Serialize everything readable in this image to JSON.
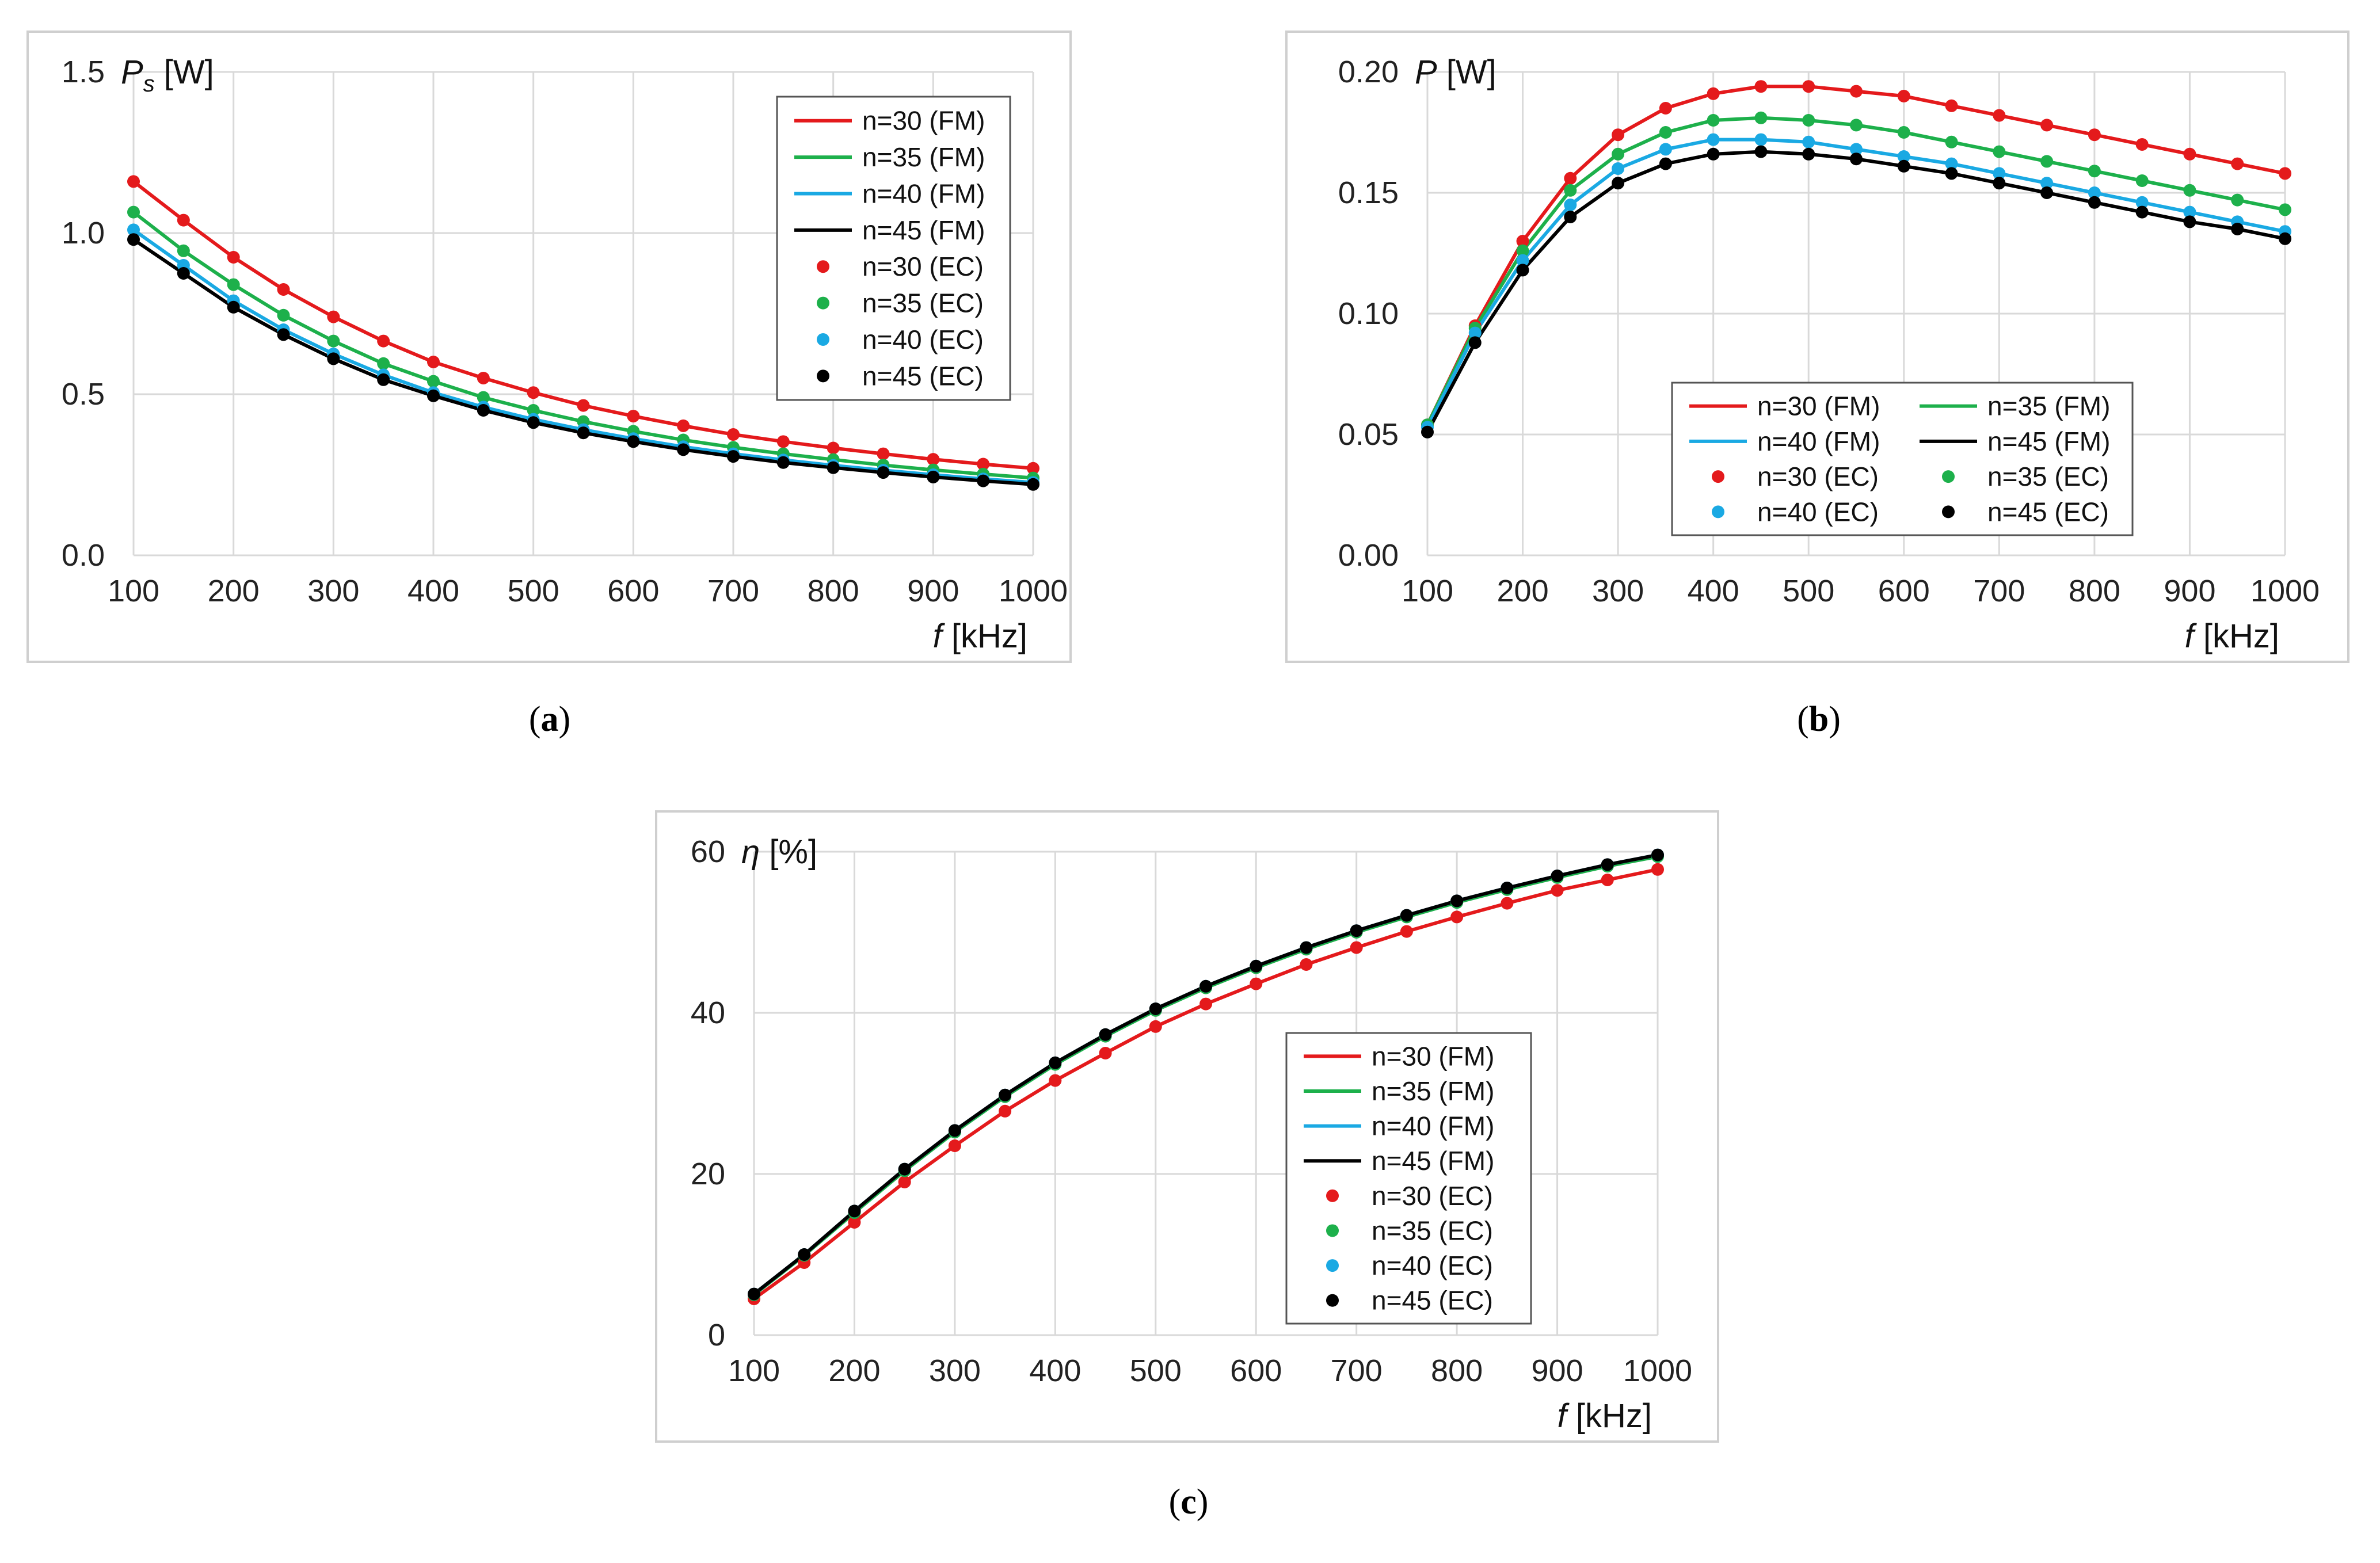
{
  "figure": {
    "panels": [
      "a",
      "b",
      "c"
    ]
  },
  "chart_data": [
    {
      "id": "a",
      "type": "line",
      "caption": "(a)",
      "ylabel_sym": "P",
      "ylabel_sub": "s",
      "ylabel_unit": " [W]",
      "xlabel_sym": "f",
      "xlabel_unit": " [kHz]",
      "xlim": [
        100,
        1000
      ],
      "ylim": [
        0,
        1.5
      ],
      "xticks": [
        100,
        200,
        300,
        400,
        500,
        600,
        700,
        800,
        900,
        1000
      ],
      "yticks": [
        0,
        0.5,
        1.0,
        1.5
      ],
      "ytick_labels": [
        "0.0",
        "0.5",
        "1.0",
        "1.5"
      ],
      "grid": true,
      "legend_columns": 1,
      "legend_position": "top-right",
      "x": [
        100,
        150,
        200,
        250,
        300,
        350,
        400,
        450,
        500,
        550,
        600,
        650,
        700,
        750,
        800,
        850,
        900,
        950,
        1000
      ],
      "series": [
        {
          "name": "n=30",
          "color": "#e41a1c",
          "values": [
            1.16,
            1.04,
            0.925,
            0.825,
            0.74,
            0.665,
            0.6,
            0.55,
            0.505,
            0.465,
            0.432,
            0.402,
            0.375,
            0.353,
            0.333,
            0.315,
            0.298,
            0.283,
            0.27
          ]
        },
        {
          "name": "n=35",
          "color": "#1db04b",
          "values": [
            1.065,
            0.945,
            0.84,
            0.745,
            0.665,
            0.595,
            0.54,
            0.49,
            0.45,
            0.415,
            0.385,
            0.358,
            0.335,
            0.315,
            0.297,
            0.28,
            0.265,
            0.252,
            0.24
          ]
        },
        {
          "name": "n=40",
          "color": "#1aa9e3",
          "values": [
            1.01,
            0.9,
            0.79,
            0.7,
            0.625,
            0.56,
            0.505,
            0.46,
            0.422,
            0.39,
            0.362,
            0.337,
            0.315,
            0.296,
            0.279,
            0.264,
            0.25,
            0.237,
            0.226
          ]
        },
        {
          "name": "n=45",
          "color": "#000000",
          "values": [
            0.98,
            0.875,
            0.77,
            0.685,
            0.61,
            0.545,
            0.495,
            0.45,
            0.412,
            0.38,
            0.353,
            0.328,
            0.307,
            0.288,
            0.272,
            0.257,
            0.243,
            0.231,
            0.22
          ]
        }
      ],
      "legend": [
        "n=30 (FM)",
        "n=35 (FM)",
        "n=40 (FM)",
        "n=45 (FM)",
        "n=30 (EC)",
        "n=35 (EC)",
        "n=40 (EC)",
        "n=45 (EC)"
      ]
    },
    {
      "id": "b",
      "type": "line",
      "caption": "(b)",
      "ylabel_sym": "P",
      "ylabel_sub": "",
      "ylabel_unit": " [W]",
      "xlabel_sym": "f",
      "xlabel_unit": " [kHz]",
      "xlim": [
        100,
        1000
      ],
      "ylim": [
        0,
        0.2
      ],
      "xticks": [
        100,
        200,
        300,
        400,
        500,
        600,
        700,
        800,
        900,
        1000
      ],
      "yticks": [
        0,
        0.05,
        0.1,
        0.15,
        0.2
      ],
      "ytick_labels": [
        "0.00",
        "0.05",
        "0.10",
        "0.15",
        "0.20"
      ],
      "grid": true,
      "legend_columns": 2,
      "legend_position": "bottom-center",
      "x": [
        100,
        150,
        200,
        250,
        300,
        350,
        400,
        450,
        500,
        550,
        600,
        650,
        700,
        750,
        800,
        850,
        900,
        950,
        1000
      ],
      "series": [
        {
          "name": "n=30",
          "color": "#e41a1c",
          "values": [
            0.054,
            0.095,
            0.13,
            0.156,
            0.174,
            0.185,
            0.191,
            0.194,
            0.194,
            0.192,
            0.19,
            0.186,
            0.182,
            0.178,
            0.174,
            0.17,
            0.166,
            0.162,
            0.158
          ]
        },
        {
          "name": "n=35",
          "color": "#1db04b",
          "values": [
            0.054,
            0.094,
            0.126,
            0.151,
            0.166,
            0.175,
            0.18,
            0.181,
            0.18,
            0.178,
            0.175,
            0.171,
            0.167,
            0.163,
            0.159,
            0.155,
            0.151,
            0.147,
            0.143
          ]
        },
        {
          "name": "n=40",
          "color": "#1aa9e3",
          "values": [
            0.053,
            0.092,
            0.122,
            0.145,
            0.16,
            0.168,
            0.172,
            0.172,
            0.171,
            0.168,
            0.165,
            0.162,
            0.158,
            0.154,
            0.15,
            0.146,
            0.142,
            0.138,
            0.134
          ]
        },
        {
          "name": "n=45",
          "color": "#000000",
          "values": [
            0.051,
            0.088,
            0.118,
            0.14,
            0.154,
            0.162,
            0.166,
            0.167,
            0.166,
            0.164,
            0.161,
            0.158,
            0.154,
            0.15,
            0.146,
            0.142,
            0.138,
            0.135,
            0.131
          ]
        }
      ],
      "legend": [
        "n=30 (FM)",
        "n=35 (FM)",
        "n=40 (FM)",
        "n=45 (FM)",
        "n=30 (EC)",
        "n=35 (EC)",
        "n=40 (EC)",
        "n=45 (EC)"
      ]
    },
    {
      "id": "c",
      "type": "line",
      "caption": "(c)",
      "ylabel_sym": "η",
      "ylabel_sub": "",
      "ylabel_unit": " [%]",
      "xlabel_sym": "f",
      "xlabel_unit": " [kHz]",
      "xlim": [
        100,
        1000
      ],
      "ylim": [
        0,
        60
      ],
      "xticks": [
        100,
        200,
        300,
        400,
        500,
        600,
        700,
        800,
        900,
        1000
      ],
      "yticks": [
        0,
        20,
        40,
        60
      ],
      "ytick_labels": [
        "0",
        "20",
        "40",
        "60"
      ],
      "grid": true,
      "legend_columns": 1,
      "legend_position": "bottom-right",
      "x": [
        100,
        150,
        200,
        250,
        300,
        350,
        400,
        450,
        500,
        550,
        600,
        650,
        700,
        750,
        800,
        850,
        900,
        950,
        1000
      ],
      "series": [
        {
          "name": "n=30",
          "color": "#e41a1c",
          "values": [
            4.5,
            9.0,
            14.0,
            19.0,
            23.5,
            27.8,
            31.6,
            35.0,
            38.3,
            41.1,
            43.6,
            46.0,
            48.1,
            50.1,
            51.9,
            53.6,
            55.2,
            56.5,
            57.8
          ]
        },
        {
          "name": "n=35",
          "color": "#1db04b",
          "values": [
            5.0,
            9.9,
            15.2,
            20.4,
            25.2,
            29.6,
            33.6,
            37.1,
            40.3,
            43.1,
            45.6,
            47.9,
            50.0,
            51.9,
            53.7,
            55.3,
            56.8,
            58.2,
            59.4
          ]
        },
        {
          "name": "n=40",
          "color": "#1aa9e3",
          "values": [
            5.1,
            10.0,
            15.4,
            20.6,
            25.4,
            29.8,
            33.8,
            37.3,
            40.5,
            43.3,
            45.8,
            48.1,
            50.2,
            52.1,
            53.9,
            55.5,
            57.0,
            58.4,
            59.6
          ]
        },
        {
          "name": "n=45",
          "color": "#000000",
          "values": [
            5.1,
            10.0,
            15.4,
            20.6,
            25.4,
            29.8,
            33.8,
            37.3,
            40.5,
            43.3,
            45.8,
            48.1,
            50.2,
            52.1,
            53.9,
            55.5,
            57.0,
            58.4,
            59.6
          ]
        }
      ],
      "legend": [
        "n=30 (FM)",
        "n=35 (FM)",
        "n=40 (FM)",
        "n=45 (FM)",
        "n=30 (EC)",
        "n=35 (EC)",
        "n=40 (EC)",
        "n=45 (EC)"
      ]
    }
  ]
}
